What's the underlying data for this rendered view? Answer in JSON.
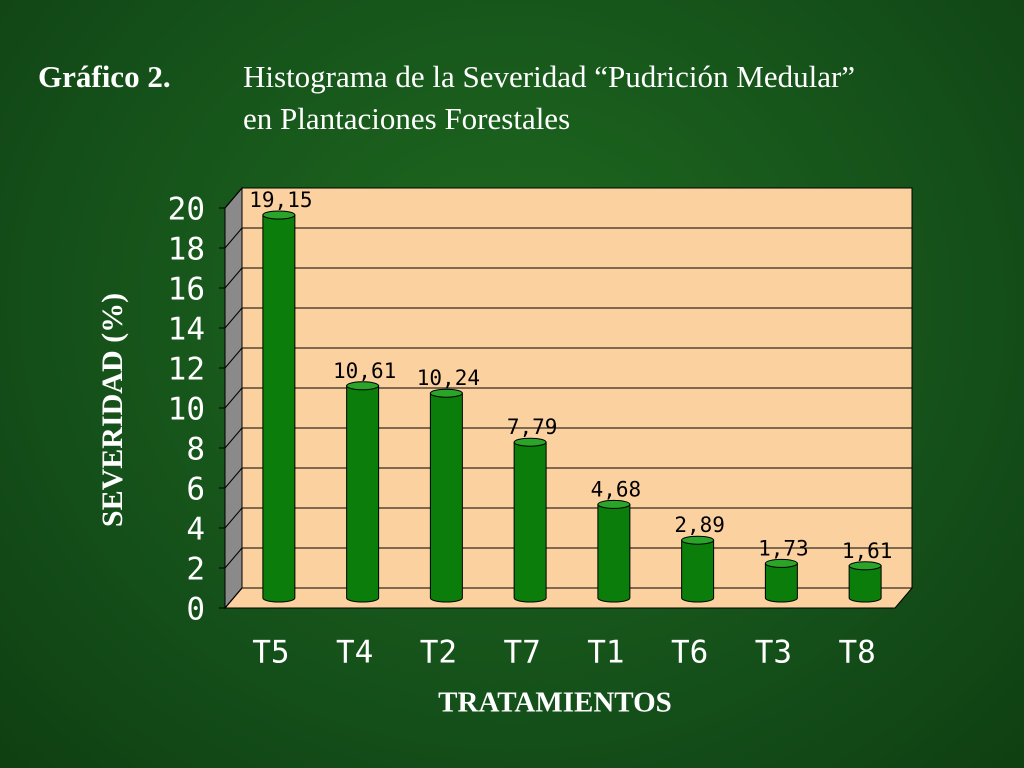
{
  "chart_data": {
    "type": "bar",
    "title_label": "Gráfico 2.",
    "title": "Histograma de la Severidad “Pudrición Medular” en Plantaciones Forestales",
    "y_label": "SEVERIDAD (%)",
    "x_label": "TRATAMIENTOS",
    "categories": [
      "T5",
      "T4",
      "T2",
      "T7",
      "T1",
      "T6",
      "T3",
      "T8"
    ],
    "values": [
      19.15,
      10.61,
      10.24,
      7.79,
      4.68,
      2.89,
      1.73,
      1.61
    ],
    "value_labels": [
      "19,15",
      "10,61",
      "10,24",
      "7,79",
      "4,68",
      "2,89",
      "1,73",
      "1,61"
    ],
    "color": "#0b7d0b",
    "wall_color": "#fcd1a0",
    "ylim": [
      0,
      20
    ],
    "yticks": [
      0,
      2,
      4,
      6,
      8,
      10,
      12,
      14,
      16,
      18,
      20
    ],
    "grid": true
  }
}
